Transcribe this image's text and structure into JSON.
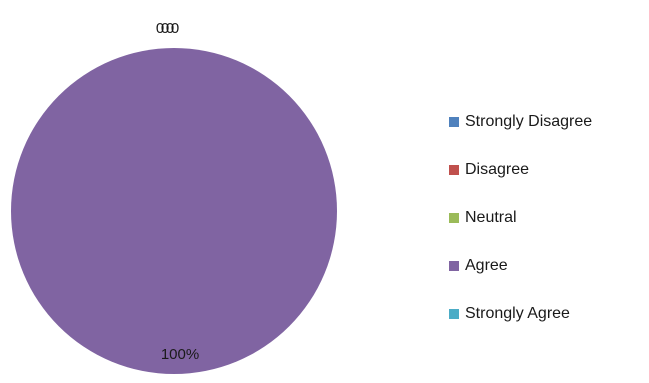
{
  "chart_data": {
    "type": "pie",
    "categories": [
      "Strongly Disagree",
      "Disagree",
      "Neutral",
      "Agree",
      "Strongly Agree"
    ],
    "values": [
      0,
      0,
      0,
      100,
      0
    ],
    "data_labels": [
      "0",
      "0",
      "0",
      "100%",
      "0"
    ],
    "colors": [
      "#4f81bd",
      "#c0504d",
      "#9bbb59",
      "#8064a2",
      "#4bacc6"
    ],
    "legend_position": "right"
  }
}
